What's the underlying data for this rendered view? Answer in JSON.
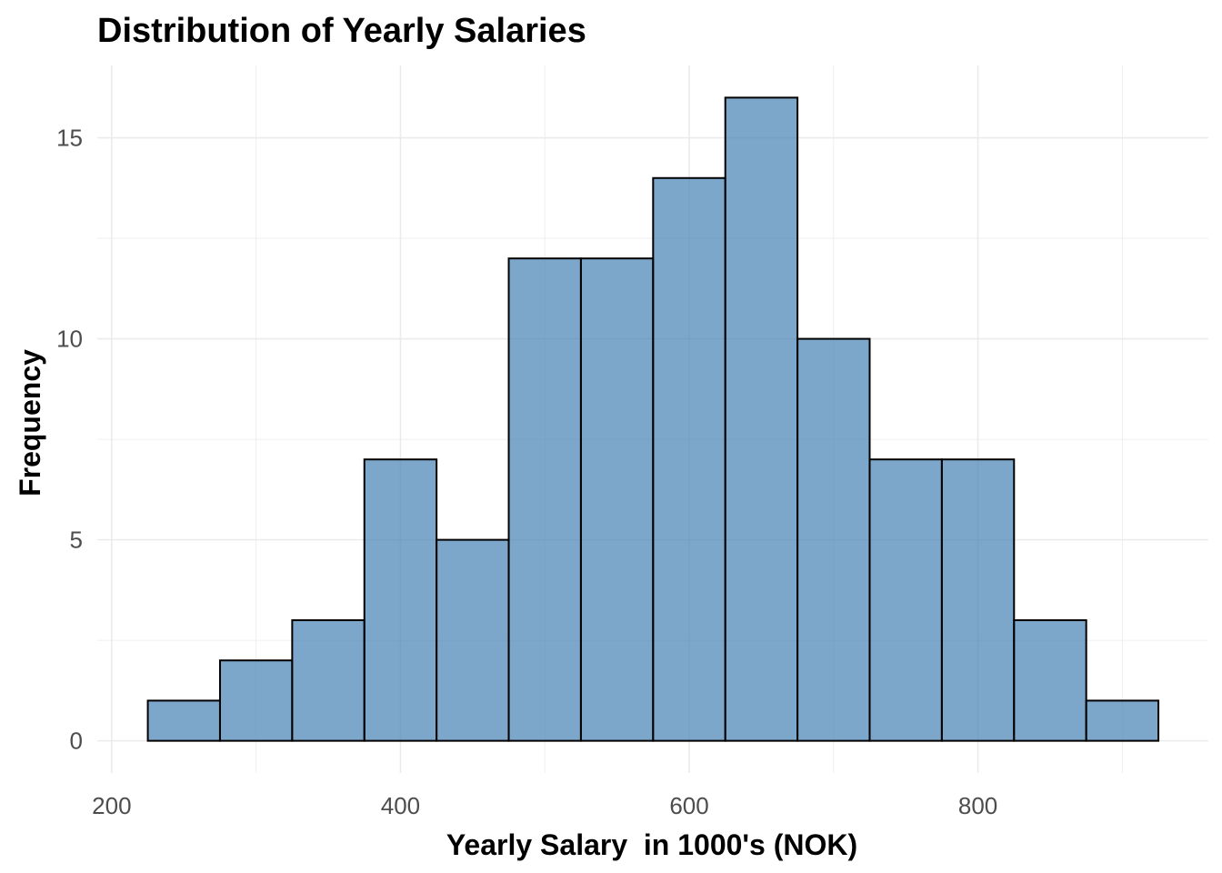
{
  "chart_data": {
    "type": "bar",
    "title": "Distribution of Yearly Salaries",
    "xlabel": "Yearly Salary  in 1000's (NOK)",
    "ylabel": "Frequency",
    "bin_width": 50,
    "bins": [
      {
        "start": 225,
        "end": 275,
        "count": 1
      },
      {
        "start": 275,
        "end": 325,
        "count": 2
      },
      {
        "start": 325,
        "end": 375,
        "count": 3
      },
      {
        "start": 375,
        "end": 425,
        "count": 7
      },
      {
        "start": 425,
        "end": 475,
        "count": 5
      },
      {
        "start": 475,
        "end": 525,
        "count": 12
      },
      {
        "start": 525,
        "end": 575,
        "count": 12
      },
      {
        "start": 575,
        "end": 625,
        "count": 14
      },
      {
        "start": 625,
        "end": 675,
        "count": 16
      },
      {
        "start": 675,
        "end": 725,
        "count": 10
      },
      {
        "start": 725,
        "end": 775,
        "count": 7
      },
      {
        "start": 775,
        "end": 825,
        "count": 7
      },
      {
        "start": 825,
        "end": 875,
        "count": 3
      },
      {
        "start": 875,
        "end": 925,
        "count": 1
      }
    ],
    "xlim": [
      200,
      925
    ],
    "ylim": [
      0,
      16
    ],
    "x_ticks": [
      200,
      400,
      600,
      800
    ],
    "y_ticks": [
      0,
      5,
      10,
      15
    ],
    "grid": true,
    "colors": {
      "bar_fill": "#4682B4",
      "bar_fill_opacity": 0.7,
      "bar_outline": "#000000",
      "grid": "#ebebeb"
    }
  }
}
